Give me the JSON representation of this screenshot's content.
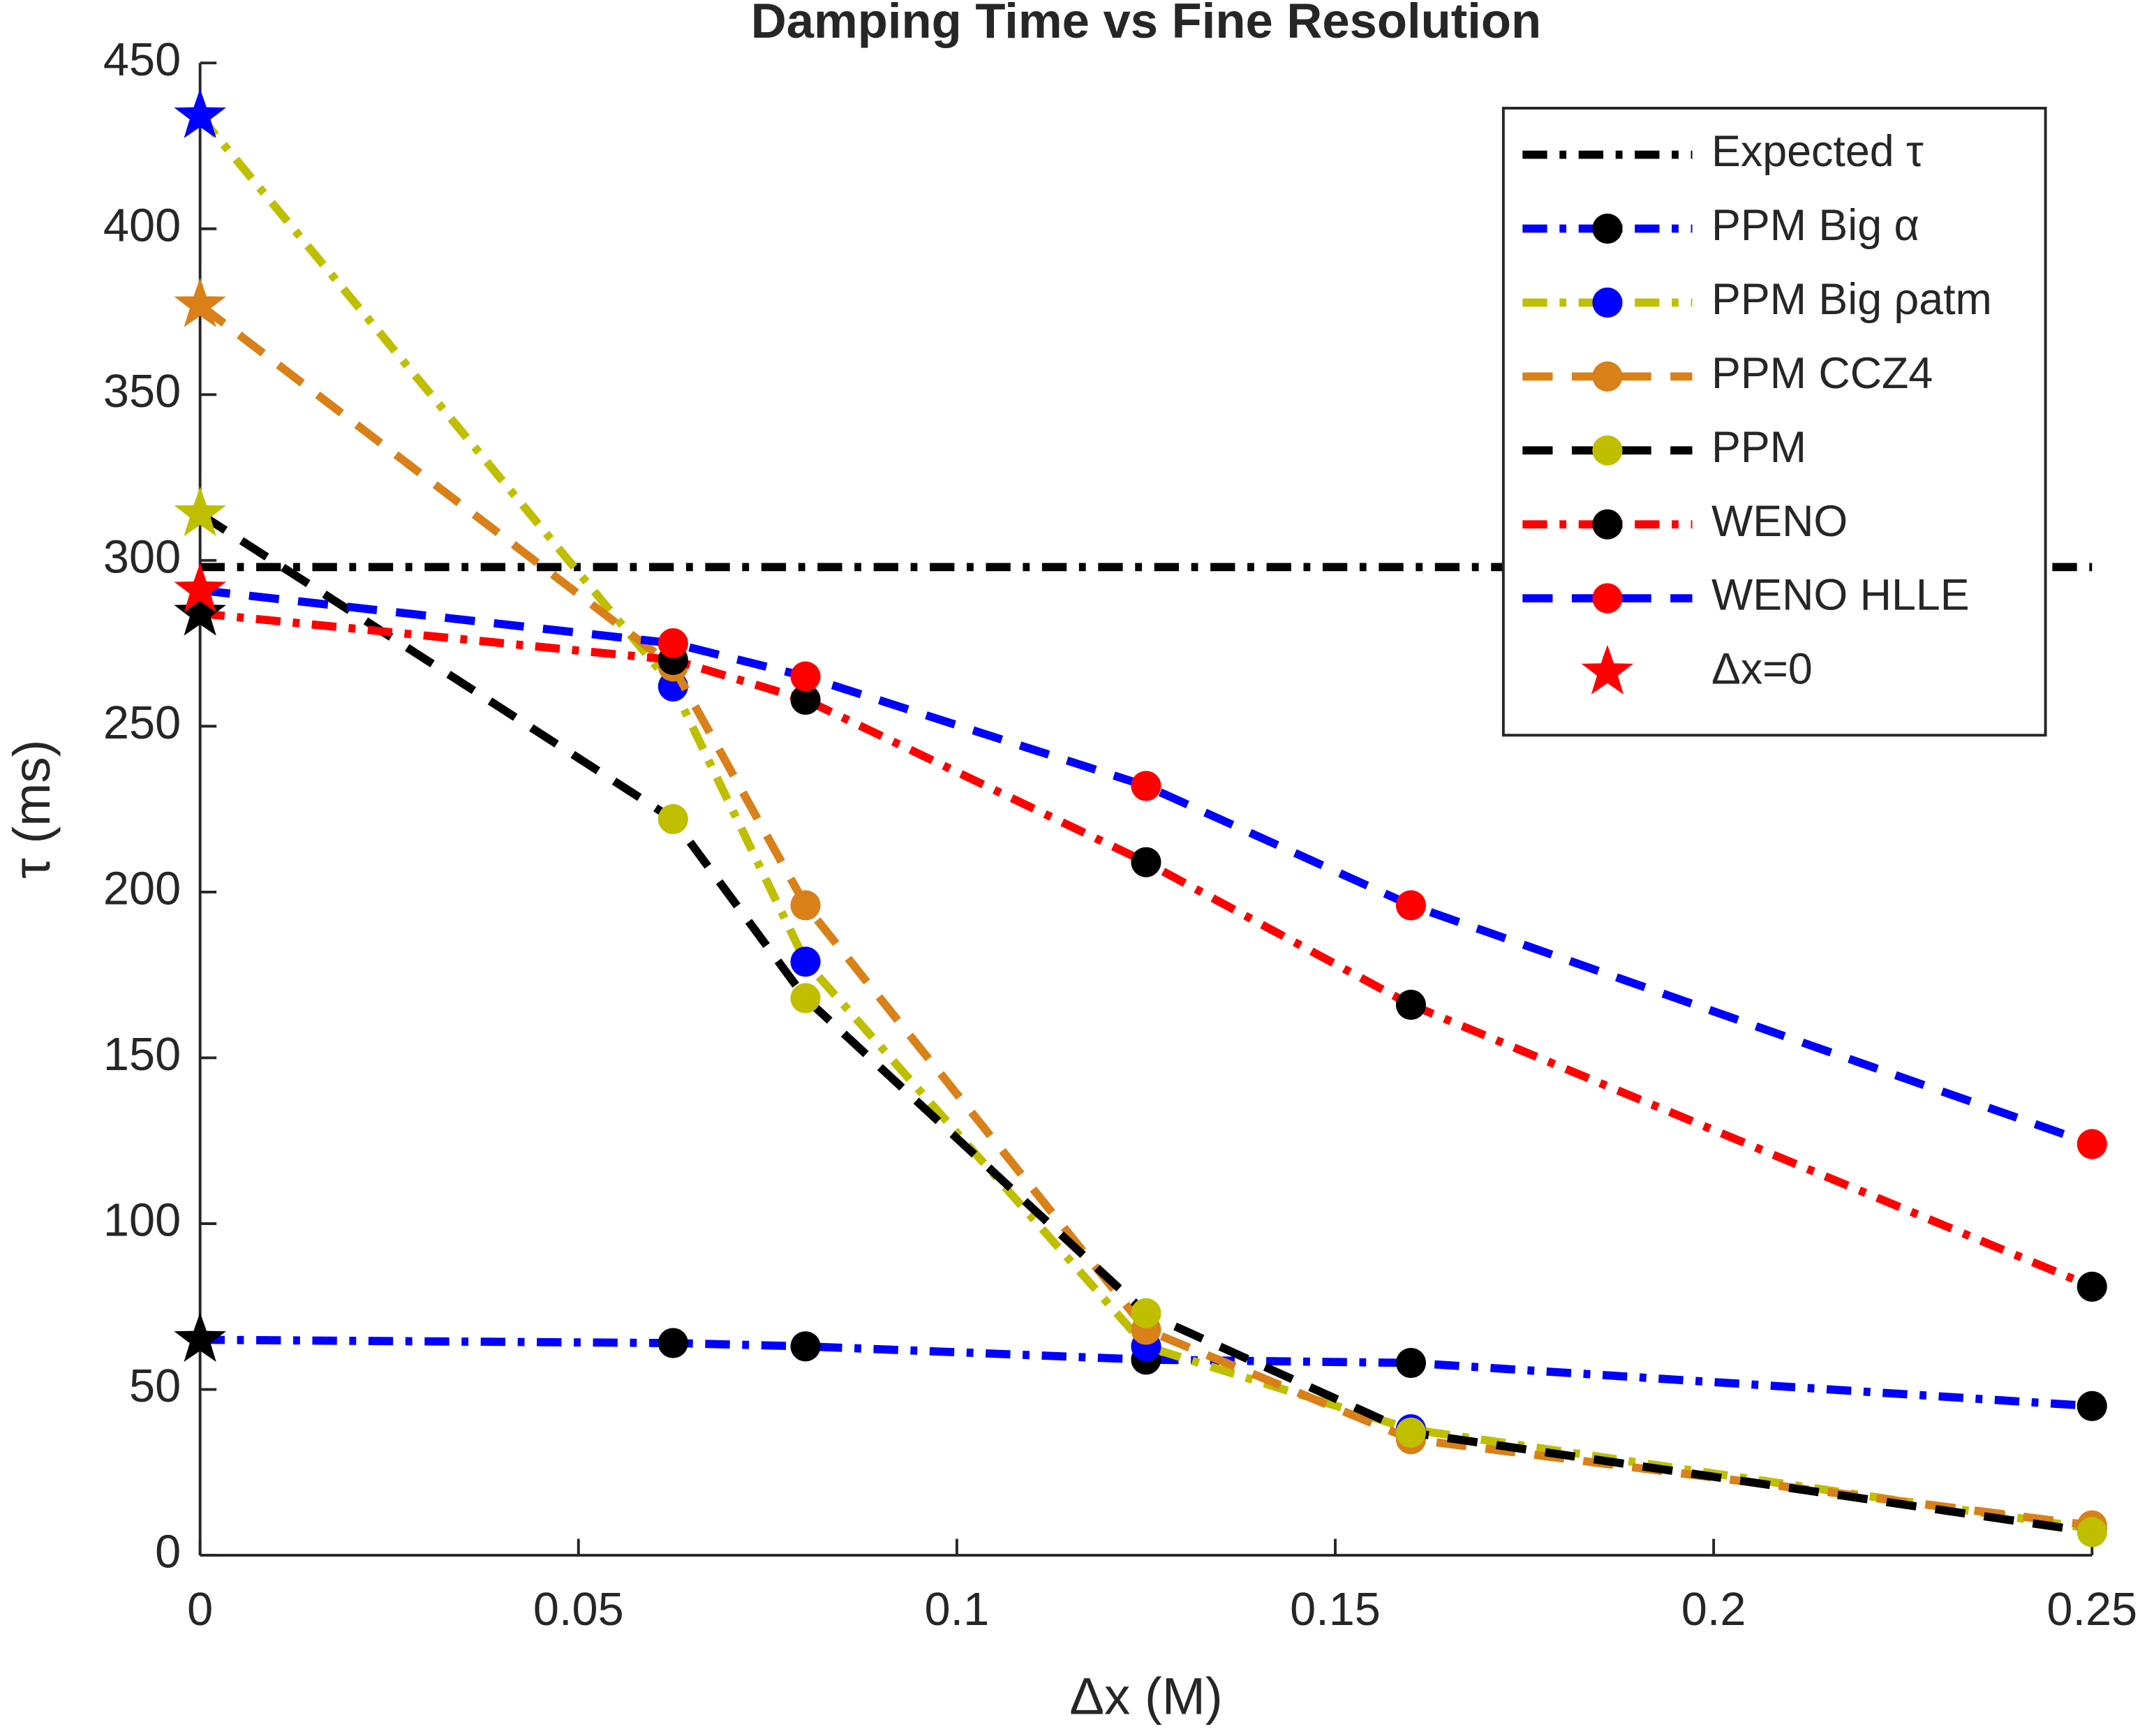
{
  "chart_data": {
    "type": "line",
    "title": "Damping Time vs Fine Resolution",
    "xlabel": "Δx (M)",
    "ylabel": "τ (ms)",
    "x": [
      0,
      0.0625,
      0.08,
      0.125,
      0.16,
      0.25
    ],
    "xlim": [
      0,
      0.25
    ],
    "xticks": [
      0,
      0.05,
      0.1,
      0.15,
      0.2,
      0.25
    ],
    "ylim": [
      0,
      450
    ],
    "yticks": [
      0,
      50,
      100,
      150,
      200,
      250,
      300,
      350,
      400,
      450
    ],
    "grid": false,
    "legend": "northeast",
    "series": [
      {
        "name": "Expected τ",
        "color": "#000000",
        "linestyle": "dashdot",
        "values": [
          298,
          298,
          298,
          298,
          298,
          298
        ]
      },
      {
        "name": "PPM Big α",
        "color": "#0000ff",
        "marker_color": "#000000",
        "linestyle": "dashdot",
        "values": [
          65,
          64,
          63,
          59,
          58,
          45
        ]
      },
      {
        "name": "PPM Big ρatm",
        "color": "#bfbf00",
        "marker_color": "#0000ff",
        "linestyle": "dashdot",
        "values": [
          434,
          262,
          179,
          63,
          38,
          8
        ]
      },
      {
        "name": "PPM CCZ4",
        "color": "#d98019",
        "marker_color": "#d98019",
        "linestyle": "dashed",
        "values": [
          377,
          268,
          196,
          68,
          35,
          9
        ]
      },
      {
        "name": "PPM",
        "color": "#000000",
        "marker_color": "#bfbf00",
        "linestyle": "dashed",
        "values": [
          314,
          222,
          168,
          73,
          37,
          7
        ]
      },
      {
        "name": "WENO",
        "color": "#ff0000",
        "marker_color": "#000000",
        "linestyle": "dashdot",
        "values": [
          284,
          270,
          258,
          209,
          166,
          81
        ]
      },
      {
        "name": "WENO HLLE",
        "color": "#0000ff",
        "marker_color": "#ff0000",
        "linestyle": "dashed",
        "values": [
          291,
          275,
          265,
          232,
          196,
          124
        ]
      }
    ],
    "star_legend": {
      "name": "Δx=0",
      "color": "#ff0000"
    }
  }
}
